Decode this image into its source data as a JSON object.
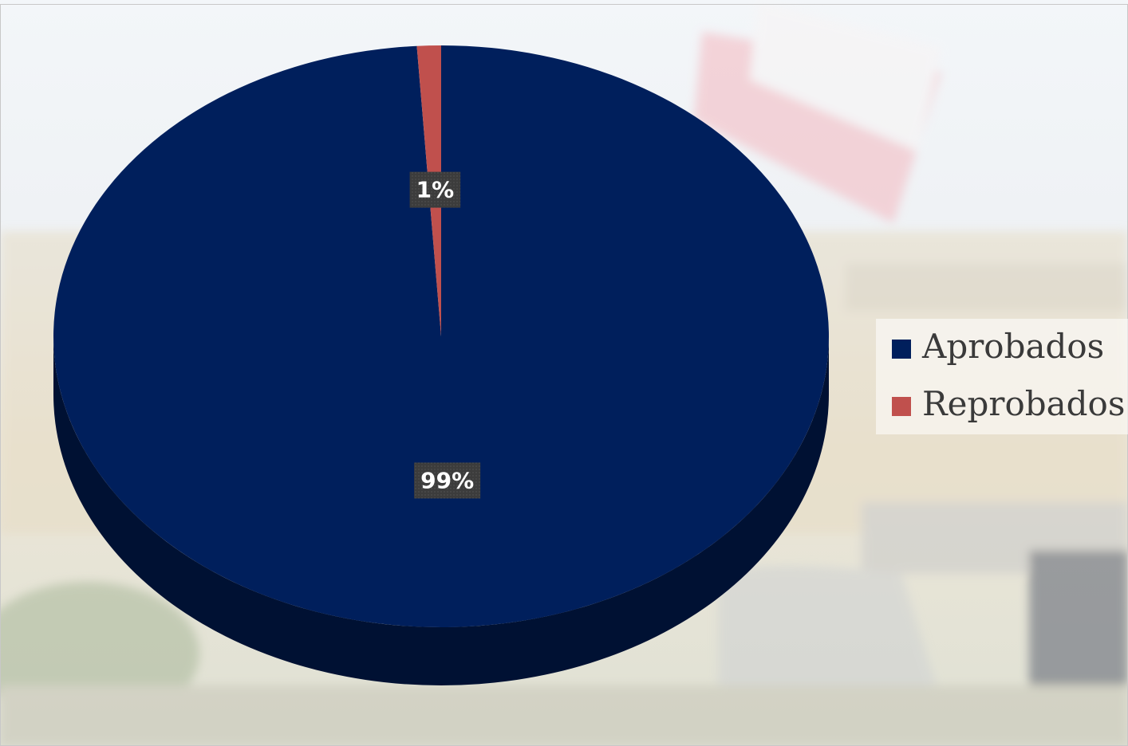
{
  "chart_data": {
    "type": "pie",
    "categories": [
      "Aprobados",
      "Reprobados"
    ],
    "values": [
      99,
      1
    ],
    "value_labels": [
      "99%",
      "1%"
    ],
    "colors": [
      "#001f5c",
      "#c0504d"
    ],
    "legend": "right"
  }
}
